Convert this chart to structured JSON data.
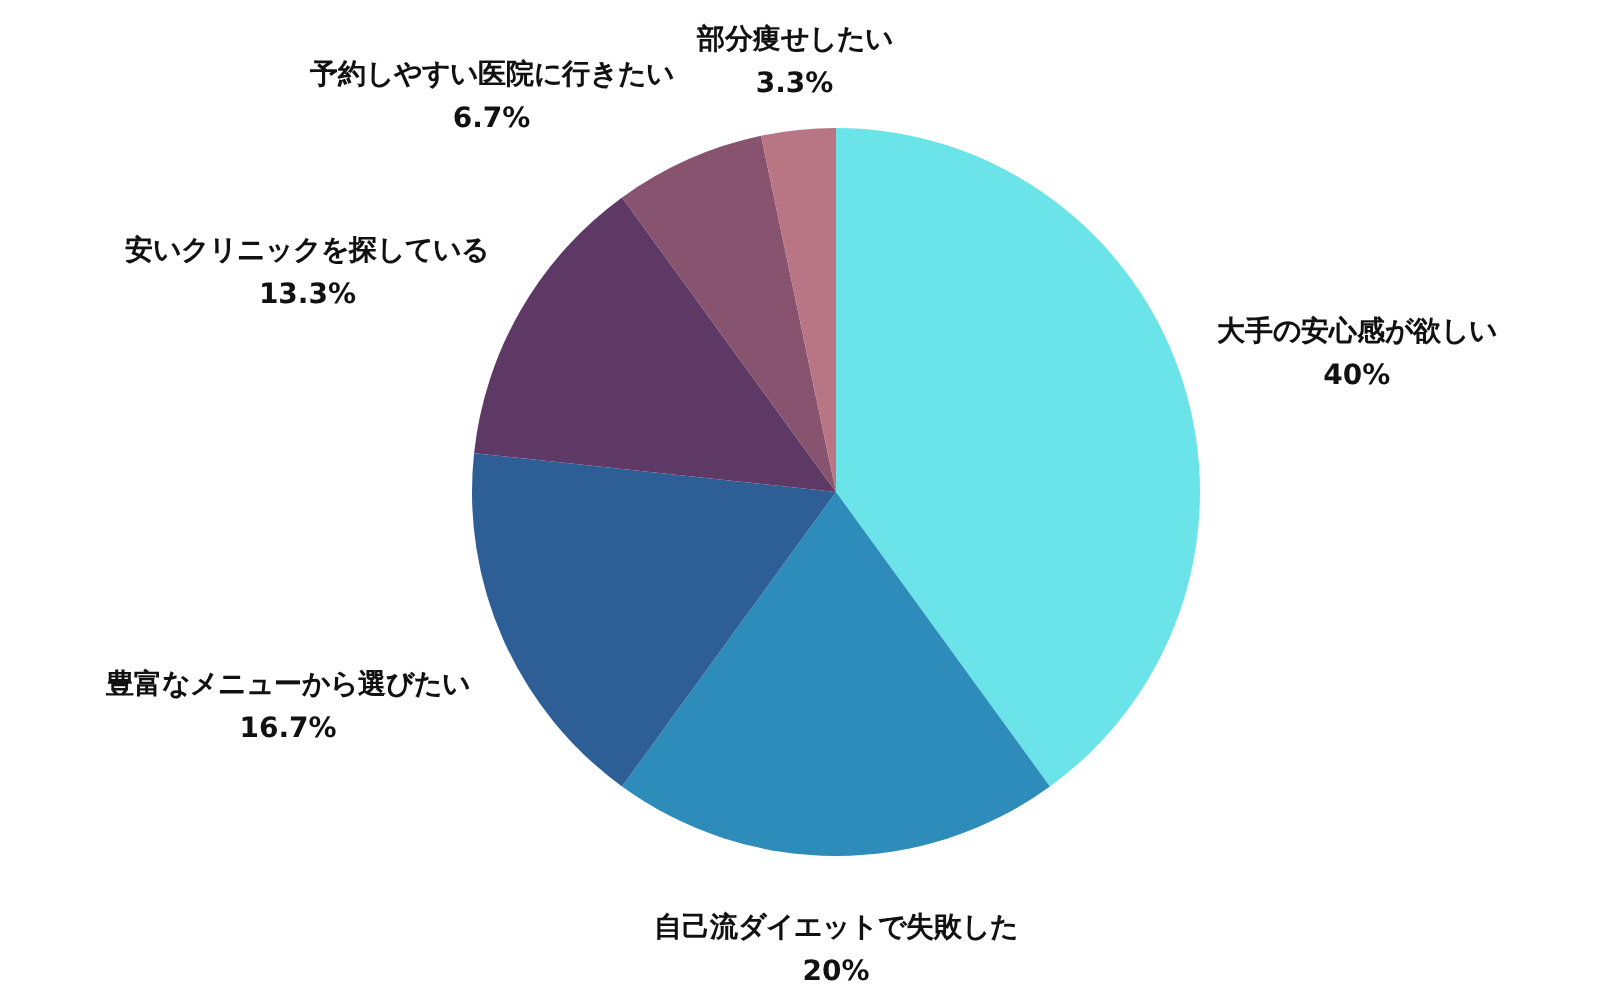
{
  "chart_data": {
    "type": "pie",
    "categories": [
      "大手の安心感が欲しい",
      "自己流ダイエットで失敗した",
      "豊富なメニューから選びたい",
      "安いクリニックを探している",
      "予約しやすい医院に行きたい",
      "部分痩せしたい"
    ],
    "values": [
      40,
      20,
      16.7,
      13.3,
      6.7,
      3.3
    ],
    "value_labels": [
      "40%",
      "20%",
      "16.7%",
      "13.3%",
      "6.7%",
      "3.3%"
    ],
    "colors": [
      "#6ae4e8",
      "#2e8cba",
      "#2e5e96",
      "#5e3966",
      "#87536f",
      "#b87583"
    ]
  }
}
